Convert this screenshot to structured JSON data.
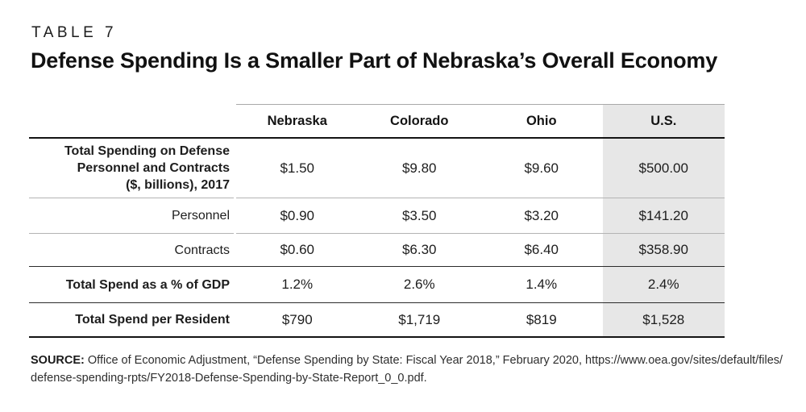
{
  "page": {
    "kicker": "TABLE 7",
    "title": "Defense Spending Is a Smaller Part of Nebraska’s Overall Economy"
  },
  "table": {
    "columns": [
      "Nebraska",
      "Colorado",
      "Ohio",
      "U.S."
    ],
    "highlighted_column": "U.S.",
    "rows": [
      {
        "label": "Total Spending on Defense\nPersonnel and Contracts\n($, billions), 2017",
        "values": [
          "$1.50",
          "$9.80",
          "$9.60",
          "$500.00"
        ]
      },
      {
        "label": "Personnel",
        "values": [
          "$0.90",
          "$3.50",
          "$3.20",
          "$141.20"
        ]
      },
      {
        "label": "Contracts",
        "values": [
          "$0.60",
          "$6.30",
          "$6.40",
          "$358.90"
        ]
      },
      {
        "label": "Total Spend as a % of GDP",
        "values": [
          "1.2%",
          "2.6%",
          "1.4%",
          "2.4%"
        ]
      },
      {
        "label": "Total Spend per Resident",
        "values": [
          "$790",
          "$1,719",
          "$819",
          "$1,528"
        ]
      }
    ]
  },
  "source": {
    "label": "SOURCE:",
    "lines": [
      " Office of Economic Adjustment, “Defense Spending by State: Fiscal Year 2018,” February 2020, https://www.oea.gov/sites/default/files/",
      "defense-spending-rpts/FY2018-Defense-Spending-by-State-Report_0_0.pdf."
    ]
  },
  "colors": {
    "highlight_bg": "#e7e7e7",
    "rule_heavy": "#131313",
    "rule_dark": "#2b2b2b",
    "rule_light": "#b4b4b4"
  }
}
